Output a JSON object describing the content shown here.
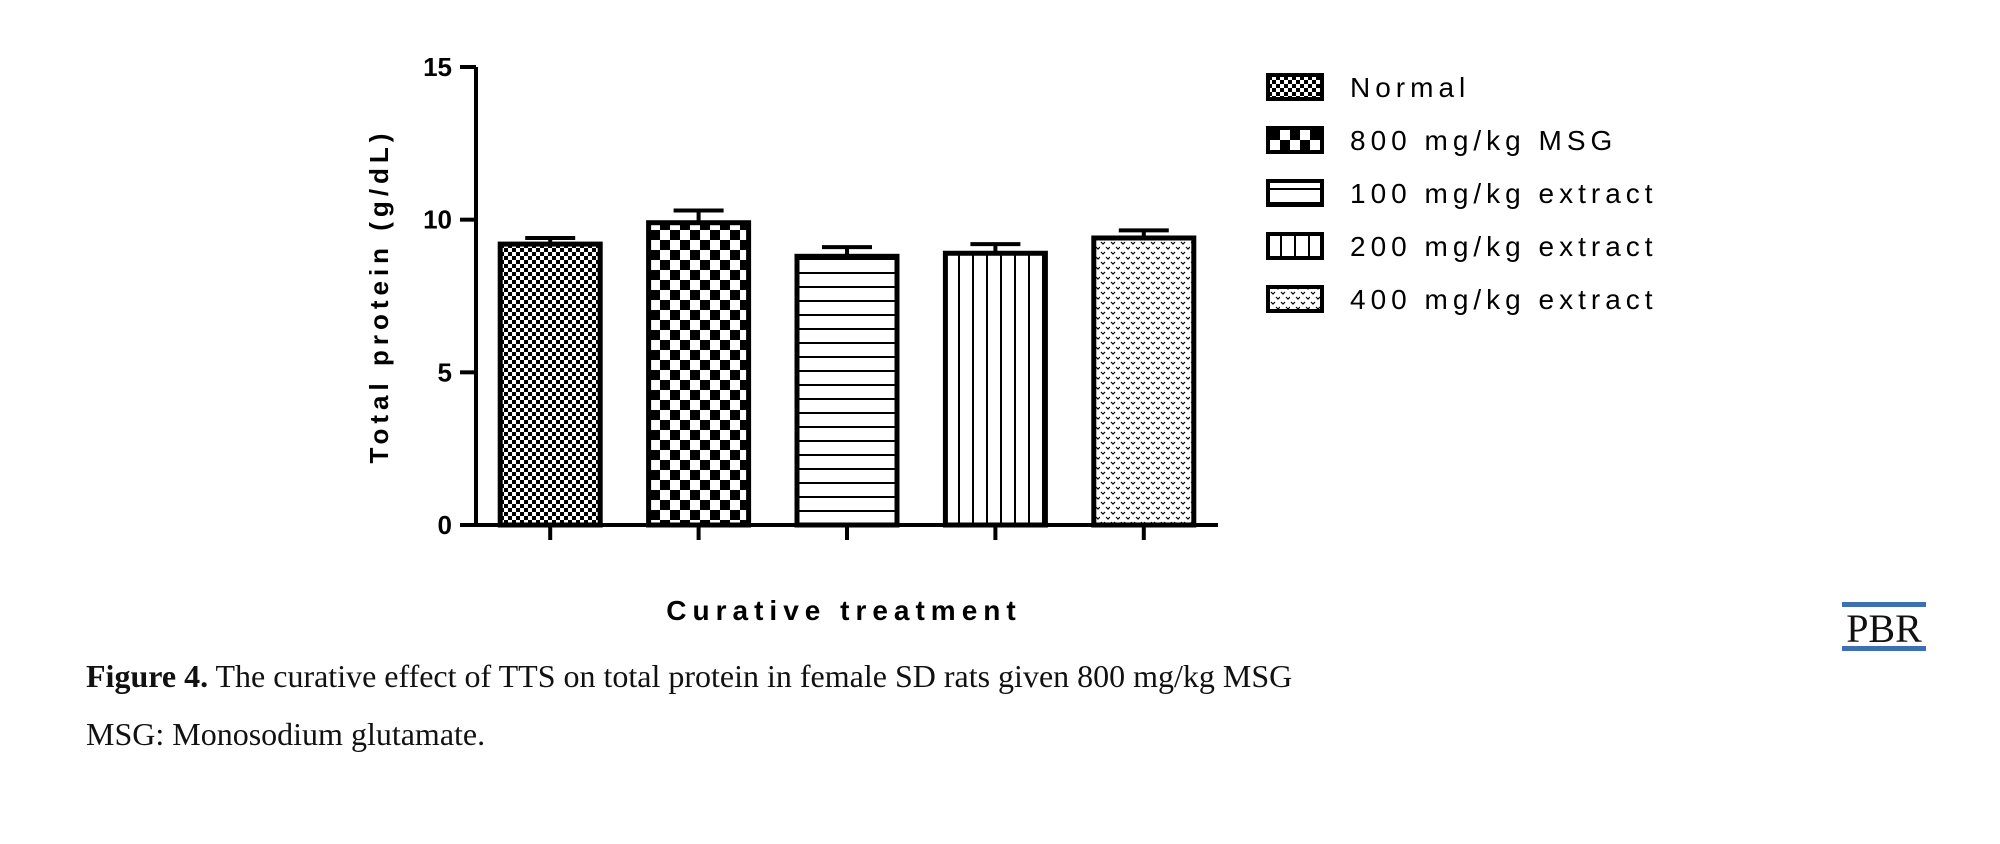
{
  "chart_data": {
    "type": "bar",
    "title": "",
    "xlabel": "Curative treatment",
    "ylabel": "Total protein (g/dL)",
    "ylim": [
      0,
      15
    ],
    "yticks": [
      "0",
      "5",
      "10",
      "15"
    ],
    "categories": [
      "Normal",
      "800 mg/kg MSG",
      "100 mg/kg extract",
      "200 mg/kg extract",
      "400 mg/kg extract"
    ],
    "values": [
      9.2,
      9.9,
      8.8,
      8.9,
      9.4
    ],
    "error": [
      0.2,
      0.4,
      0.3,
      0.3,
      0.25
    ],
    "patterns": [
      "small-checker",
      "large-checker",
      "horizontal-lines",
      "vertical-lines",
      "dots"
    ],
    "legend_position": "right",
    "grid": false
  },
  "caption": {
    "label": "Figure 4.",
    "text": "The curative effect of TTS on total protein in female SD rats given 800 mg/kg MSG",
    "line2": "MSG: Monosodium glutamate."
  },
  "logo": {
    "text": "PBR",
    "color": "#3d6fb4"
  }
}
